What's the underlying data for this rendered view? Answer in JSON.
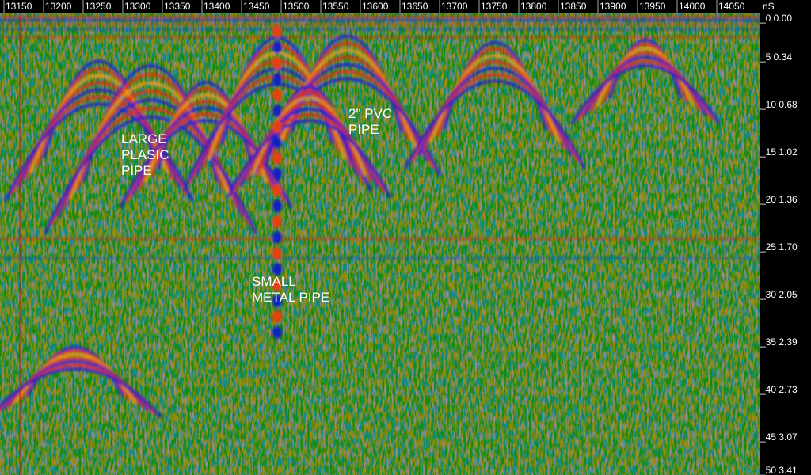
{
  "x_axis": {
    "labels": [
      "13150",
      "13200",
      "13250",
      "13300",
      "13350",
      "13400",
      "13450",
      "13500",
      "13550",
      "13600",
      "13650",
      "13700",
      "13750",
      "13800",
      "13850",
      "13900",
      "13950",
      "14000",
      "14050"
    ]
  },
  "y_axis": {
    "unit": "nS",
    "labels": [
      "_0 0.00",
      "_5 0.34",
      "_10 0.68",
      "_15 1.02",
      "_20 1.36",
      "_25 1.70",
      "_30 2.05",
      "_35 2.39",
      "_40 2.73",
      "_45 3.07",
      "_50 3.41"
    ]
  },
  "annotations": [
    {
      "lines": [
        "LARGE",
        "PLASIC",
        "PIPE"
      ]
    },
    {
      "lines": [
        "2\" PVC",
        "PIPE"
      ]
    },
    {
      "lines": [
        "SMALL",
        "METAL PIPE"
      ]
    }
  ]
}
